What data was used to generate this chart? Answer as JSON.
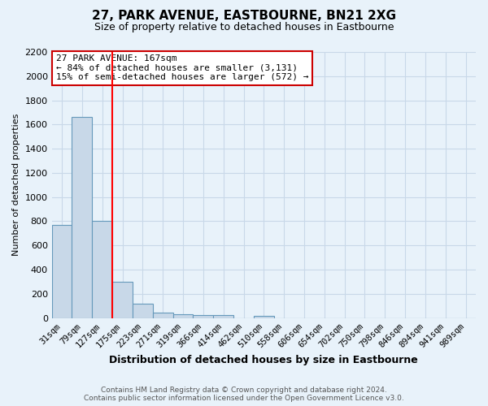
{
  "title": "27, PARK AVENUE, EASTBOURNE, BN21 2XG",
  "subtitle": "Size of property relative to detached houses in Eastbourne",
  "xlabel": "Distribution of detached houses by size in Eastbourne",
  "ylabel": "Number of detached properties",
  "categories": [
    "31sqm",
    "79sqm",
    "127sqm",
    "175sqm",
    "223sqm",
    "271sqm",
    "319sqm",
    "366sqm",
    "414sqm",
    "462sqm",
    "510sqm",
    "558sqm",
    "606sqm",
    "654sqm",
    "702sqm",
    "750sqm",
    "798sqm",
    "846sqm",
    "894sqm",
    "941sqm",
    "989sqm"
  ],
  "values": [
    770,
    1660,
    800,
    300,
    115,
    42,
    30,
    22,
    22,
    0,
    20,
    0,
    0,
    0,
    0,
    0,
    0,
    0,
    0,
    0,
    0
  ],
  "bar_color": "#c8d8e8",
  "bar_edge_color": "#6699bb",
  "grid_color": "#c8d8e8",
  "background_color": "#e8f2fa",
  "red_line_x": 2.5,
  "annotation_line1": "27 PARK AVENUE: 167sqm",
  "annotation_line2": "← 84% of detached houses are smaller (3,131)",
  "annotation_line3": "15% of semi-detached houses are larger (572) →",
  "annotation_box_facecolor": "#ffffff",
  "annotation_box_edgecolor": "#cc0000",
  "footnote": "Contains HM Land Registry data © Crown copyright and database right 2024.\nContains public sector information licensed under the Open Government Licence v3.0.",
  "ylim": [
    0,
    2200
  ],
  "yticks": [
    0,
    200,
    400,
    600,
    800,
    1000,
    1200,
    1400,
    1600,
    1800,
    2000,
    2200
  ]
}
